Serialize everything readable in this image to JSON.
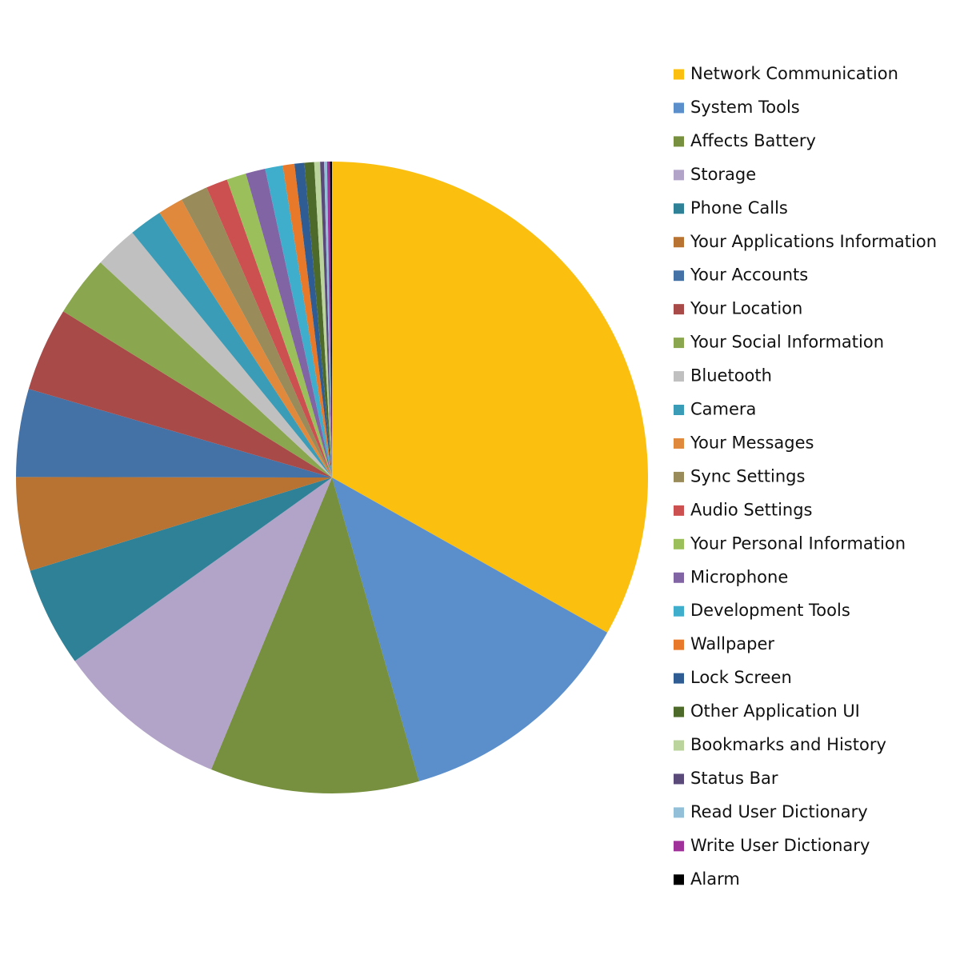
{
  "chart_data": {
    "type": "pie",
    "categories": [
      "Network Communication",
      "System Tools",
      "Affects Battery",
      "Storage",
      "Phone Calls",
      "Your Applications Information",
      "Your Accounts",
      "Your Location",
      "Your Social Information",
      "Bluetooth",
      "Camera",
      "Your Messages",
      "Sync Settings",
      "Audio Settings",
      "Your Personal Information",
      "Microphone",
      "Development Tools",
      "Wallpaper",
      "Lock Screen",
      "Other Application UI",
      "Bookmarks and History",
      "Status Bar",
      "Read User Dictionary",
      "Write User Dictionary",
      "Alarm"
    ],
    "values": [
      33.2,
      12.4,
      10.7,
      8.9,
      5.1,
      4.8,
      4.5,
      4.3,
      3.1,
      2.2,
      1.7,
      1.3,
      1.4,
      1.1,
      1.0,
      1.0,
      0.9,
      0.6,
      0.5,
      0.5,
      0.3,
      0.2,
      0.15,
      0.15,
      0.1
    ],
    "colors": [
      "#fbbf10",
      "#5b8fcc",
      "#77903f",
      "#b2a3c8",
      "#2e8196",
      "#b87333",
      "#4471a6",
      "#a84a48",
      "#8aa64e",
      "#c0c0c0",
      "#3a9cb6",
      "#e0893c",
      "#9a8b5a",
      "#cc5050",
      "#9bc05b",
      "#8164a4",
      "#3fadcc",
      "#e8792a",
      "#2f5c93",
      "#4e6a2a",
      "#bbd39c",
      "#5a4a7a",
      "#93c0d8",
      "#a0309a",
      "#000000"
    ],
    "legend": "right"
  }
}
